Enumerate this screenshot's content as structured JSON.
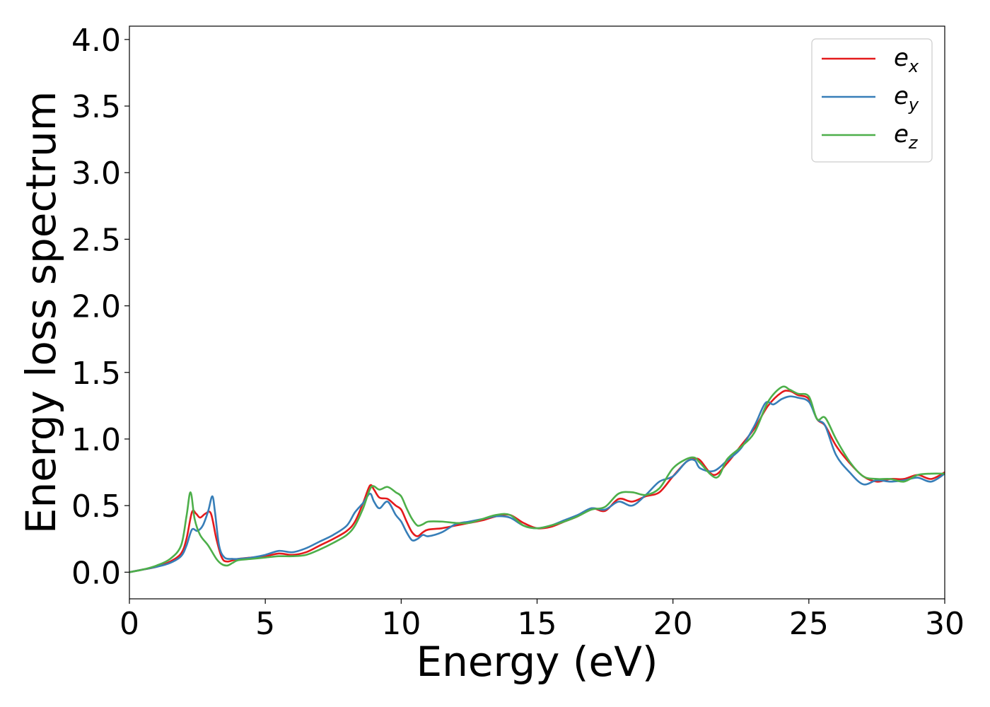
{
  "chart_data": {
    "type": "line",
    "title": "",
    "xlabel": "Energy (eV)",
    "ylabel": "Energy loss spectrum",
    "xlim": [
      0,
      30
    ],
    "ylim": [
      -0.2,
      4.1
    ],
    "xticks": [
      0,
      5,
      10,
      15,
      20,
      25,
      30
    ],
    "xtick_labels": [
      "0",
      "5",
      "10",
      "15",
      "20",
      "25",
      "30"
    ],
    "yticks": [
      0.0,
      0.5,
      1.0,
      1.5,
      2.0,
      2.5,
      3.0,
      3.5,
      4.0
    ],
    "ytick_labels": [
      "0.0",
      "0.5",
      "1.0",
      "1.5",
      "2.0",
      "2.5",
      "3.0",
      "3.5",
      "4.0"
    ],
    "grid": false,
    "legend_position": "top-right",
    "series": [
      {
        "name": "e",
        "subscript": "x",
        "color": "#e41a1c",
        "x": [
          0,
          0.5,
          1.0,
          1.5,
          1.9,
          2.1,
          2.3,
          2.45,
          2.6,
          2.8,
          3.0,
          3.2,
          3.4,
          3.6,
          4.0,
          4.5,
          5.0,
          5.5,
          6.0,
          6.5,
          7.0,
          7.5,
          8.0,
          8.3,
          8.6,
          8.85,
          9.0,
          9.2,
          9.5,
          9.8,
          10.0,
          10.2,
          10.4,
          10.6,
          10.8,
          11.0,
          11.5,
          12.0,
          12.5,
          13.0,
          13.5,
          14.0,
          14.5,
          15.0,
          15.5,
          16.0,
          16.5,
          17.0,
          17.5,
          18.0,
          18.5,
          19.0,
          19.5,
          20.0,
          20.5,
          20.8,
          21.0,
          21.5,
          22.0,
          22.5,
          23.0,
          23.5,
          24.0,
          24.3,
          24.6,
          25.0,
          25.3,
          25.6,
          26.0,
          26.5,
          27.0,
          27.5,
          28.0,
          28.5,
          29.0,
          29.5,
          30.0
        ],
        "y": [
          0.0,
          0.02,
          0.04,
          0.08,
          0.14,
          0.25,
          0.45,
          0.44,
          0.41,
          0.44,
          0.44,
          0.25,
          0.11,
          0.08,
          0.1,
          0.11,
          0.12,
          0.14,
          0.13,
          0.15,
          0.2,
          0.25,
          0.31,
          0.38,
          0.52,
          0.65,
          0.62,
          0.56,
          0.55,
          0.5,
          0.47,
          0.38,
          0.3,
          0.27,
          0.3,
          0.32,
          0.33,
          0.35,
          0.37,
          0.39,
          0.42,
          0.43,
          0.37,
          0.33,
          0.34,
          0.38,
          0.42,
          0.48,
          0.46,
          0.55,
          0.53,
          0.57,
          0.6,
          0.72,
          0.83,
          0.85,
          0.84,
          0.73,
          0.82,
          0.95,
          1.08,
          1.25,
          1.35,
          1.36,
          1.33,
          1.3,
          1.15,
          1.1,
          0.95,
          0.82,
          0.72,
          0.68,
          0.7,
          0.7,
          0.73,
          0.7,
          0.75
        ]
      },
      {
        "name": "e",
        "subscript": "y",
        "color": "#377eb8",
        "x": [
          0,
          0.5,
          1.0,
          1.5,
          1.9,
          2.1,
          2.3,
          2.5,
          2.7,
          2.9,
          3.05,
          3.15,
          3.3,
          3.5,
          3.8,
          4.0,
          4.5,
          5.0,
          5.5,
          6.0,
          6.5,
          7.0,
          7.5,
          8.0,
          8.3,
          8.6,
          8.85,
          9.0,
          9.2,
          9.5,
          9.8,
          10.0,
          10.2,
          10.4,
          10.6,
          10.8,
          11.0,
          11.5,
          12.0,
          12.5,
          13.0,
          13.5,
          14.0,
          14.5,
          15.0,
          15.5,
          16.0,
          16.5,
          17.0,
          17.5,
          18.0,
          18.5,
          19.0,
          19.5,
          20.0,
          20.5,
          20.8,
          21.0,
          21.5,
          22.0,
          22.5,
          23.0,
          23.4,
          23.7,
          24.0,
          24.3,
          24.6,
          25.0,
          25.3,
          25.6,
          26.0,
          26.5,
          27.0,
          27.5,
          28.0,
          28.5,
          29.0,
          29.5,
          30.0
        ],
        "y": [
          0.0,
          0.02,
          0.04,
          0.07,
          0.12,
          0.2,
          0.32,
          0.31,
          0.35,
          0.46,
          0.57,
          0.45,
          0.2,
          0.11,
          0.1,
          0.1,
          0.11,
          0.13,
          0.16,
          0.15,
          0.18,
          0.23,
          0.28,
          0.35,
          0.45,
          0.52,
          0.59,
          0.53,
          0.48,
          0.53,
          0.43,
          0.38,
          0.3,
          0.24,
          0.25,
          0.28,
          0.27,
          0.3,
          0.36,
          0.38,
          0.4,
          0.42,
          0.41,
          0.35,
          0.33,
          0.35,
          0.39,
          0.43,
          0.48,
          0.47,
          0.53,
          0.5,
          0.58,
          0.68,
          0.72,
          0.83,
          0.84,
          0.78,
          0.76,
          0.84,
          0.93,
          1.1,
          1.27,
          1.26,
          1.3,
          1.32,
          1.31,
          1.28,
          1.15,
          1.1,
          0.88,
          0.75,
          0.66,
          0.69,
          0.68,
          0.69,
          0.71,
          0.68,
          0.74
        ]
      },
      {
        "name": "e",
        "subscript": "z",
        "color": "#4daf4a",
        "x": [
          0,
          0.5,
          1.0,
          1.5,
          1.9,
          2.1,
          2.25,
          2.4,
          2.6,
          2.9,
          3.2,
          3.4,
          3.6,
          3.8,
          4.0,
          4.5,
          5.0,
          5.5,
          6.0,
          6.5,
          7.0,
          7.5,
          8.0,
          8.3,
          8.6,
          8.9,
          9.2,
          9.5,
          9.8,
          10.0,
          10.2,
          10.4,
          10.6,
          10.8,
          11.0,
          11.5,
          12.0,
          12.5,
          13.0,
          13.5,
          14.0,
          14.5,
          15.0,
          15.5,
          16.0,
          16.5,
          17.0,
          17.5,
          18.0,
          18.5,
          19.0,
          19.5,
          20.0,
          20.5,
          20.8,
          21.0,
          21.6,
          22.0,
          22.5,
          23.0,
          23.5,
          24.0,
          24.3,
          24.6,
          25.0,
          25.3,
          25.6,
          26.0,
          26.5,
          27.0,
          27.5,
          28.0,
          28.5,
          29.0,
          29.5,
          30.0
        ],
        "y": [
          0.0,
          0.02,
          0.05,
          0.1,
          0.2,
          0.42,
          0.6,
          0.4,
          0.28,
          0.2,
          0.1,
          0.06,
          0.05,
          0.07,
          0.09,
          0.1,
          0.11,
          0.12,
          0.12,
          0.13,
          0.17,
          0.22,
          0.28,
          0.35,
          0.48,
          0.64,
          0.62,
          0.64,
          0.6,
          0.57,
          0.48,
          0.4,
          0.35,
          0.36,
          0.38,
          0.38,
          0.37,
          0.37,
          0.4,
          0.43,
          0.43,
          0.35,
          0.33,
          0.35,
          0.38,
          0.42,
          0.47,
          0.49,
          0.59,
          0.6,
          0.58,
          0.63,
          0.78,
          0.85,
          0.86,
          0.82,
          0.71,
          0.85,
          0.94,
          1.05,
          1.28,
          1.39,
          1.37,
          1.34,
          1.32,
          1.15,
          1.16,
          1.0,
          0.83,
          0.72,
          0.7,
          0.7,
          0.68,
          0.73,
          0.74,
          0.74
        ]
      }
    ]
  }
}
